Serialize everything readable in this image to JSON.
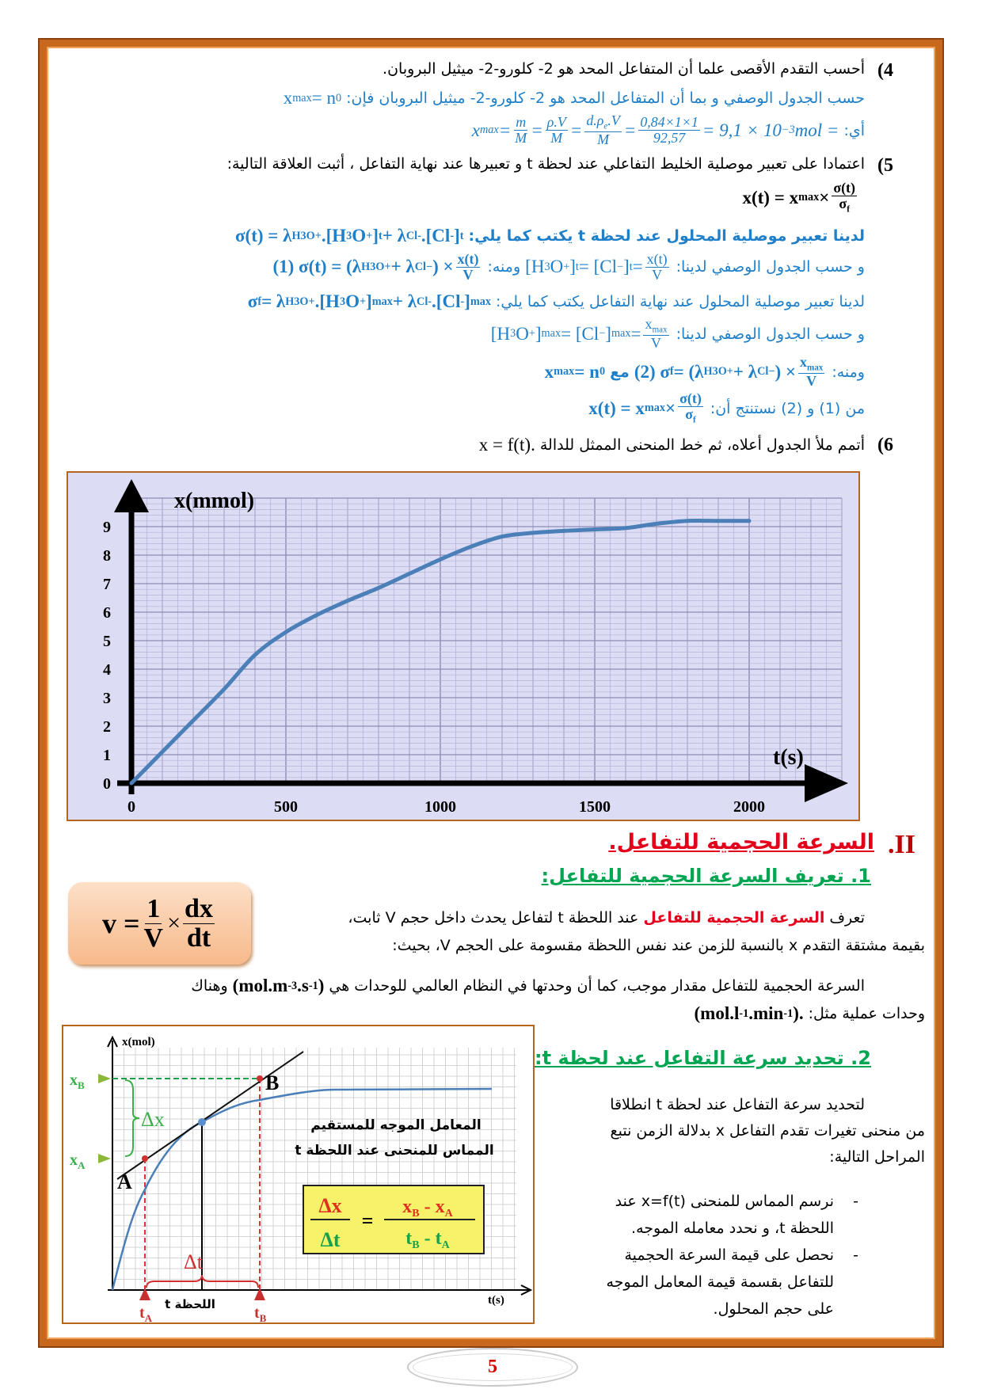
{
  "colors": {
    "answer": "#1f7fc8",
    "heading_red": "#e3001b",
    "heading_green": "#00a651",
    "frame": "#c8671e",
    "chart_bg": "#dcdcf5",
    "curve": "#4a7fb8"
  },
  "questions": {
    "q4": {
      "num": "(4",
      "segs": [
        {
          "t": "أحسب التقدم الأقصى علما أن المتفاعل المحد هو 2- كلورو-2- ميثيل البروبان."
        }
      ]
    },
    "a4_1": {
      "segs": [
        {
          "t": "حسب الجدول الوصفي و بما أن المتفاعل المحد هو 2- كلورو-2- ميثيل البروبان فإن:"
        },
        {
          "m": [
            "x",
            {
              "sub": "max"
            },
            " = n",
            {
              "sub": "0"
            }
          ]
        }
      ]
    },
    "a4_2": {
      "segs": [
        {
          "t": "أي:"
        },
        {
          "m": [
            "x",
            {
              "sub": "max"
            },
            "  = ",
            {
              "frac": [
                [
                  "m"
                ],
                [
                  "M"
                ]
              ]
            },
            " = ",
            {
              "frac": [
                [
                  "ρ.V"
                ],
                [
                  "M"
                ]
              ]
            },
            " = ",
            {
              "frac": [
                [
                  "d.ρ",
                  {
                    "sub": "e"
                  },
                  ".V"
                ],
                [
                  "M"
                ]
              ]
            },
            " = ",
            {
              "frac": [
                [
                  "0,84×1×1"
                ],
                [
                  "92,57"
                ]
              ]
            },
            " = 9,1 × 10",
            {
              "sup": "−3"
            },
            "mol ="
          ]
        }
      ]
    },
    "q5": {
      "num": "(5",
      "segs": [
        {
          "t": "اعتمادا على تعبير موصلية الخليط التفاعلي عند لحظة t و تعبيرها عند نهاية التفاعل ، أثبت العلاقة التالية:"
        }
      ]
    },
    "q5_f": {
      "segs": [
        {
          "m": [
            "x(t) = x",
            {
              "sub": "max"
            },
            " × ",
            {
              "frac": [
                [
                  "σ(t)"
                ],
                [
                  "σ",
                  {
                    "sub": "f"
                  }
                ]
              ]
            }
          ]
        }
      ]
    },
    "a5_1": {
      "segs": [
        {
          "t": "لدينا تعبير موصلية المحلول عند لحظة t يكتب كما يلي:"
        },
        {
          "m": [
            "σ(t) = λ",
            {
              "sub": "H3O+"
            },
            ".[H",
            {
              "sub": "3"
            },
            "O",
            {
              "sup": "+"
            },
            "]",
            {
              "sub": "t"
            },
            " + λ",
            {
              "sub": "Cl-"
            },
            ".[Cl",
            {
              "sup": "-"
            },
            "]",
            {
              "sub": "t"
            }
          ]
        }
      ]
    },
    "a5_2": {
      "segs": [
        {
          "t": "و حسب الجدول الوصفي لدينا:"
        },
        {
          "m": [
            "[H",
            {
              "sub": "3"
            },
            "O",
            {
              "sup": "+"
            },
            "]",
            {
              "sub": "t"
            },
            " = [Cl",
            {
              "sup": "−"
            },
            "]",
            {
              "sub": "t"
            },
            " = ",
            {
              "frac": [
                [
                  "x(t)"
                ],
                [
                  "V"
                ]
              ]
            }
          ]
        },
        {
          "t": "ومنه:"
        },
        {
          "m": [
            "(1) σ(t) = (λ",
            {
              "sub": "H3O+"
            },
            " + λ",
            {
              "sub": "Cl−"
            },
            ") × ",
            {
              "frac": [
                [
                  "x(t)"
                ],
                [
                  "V"
                ]
              ]
            }
          ],
          "b": true
        }
      ]
    },
    "a5_3": {
      "segs": [
        {
          "t": "لدينا تعبير موصلية المحلول عند نهاية التفاعل يكتب كما يلي:"
        },
        {
          "m": [
            "σ",
            {
              "sub": "f"
            },
            " = λ",
            {
              "sub": "H3O+"
            },
            ".[H",
            {
              "sub": "3"
            },
            "O",
            {
              "sup": "+"
            },
            "]",
            {
              "sub": "max"
            },
            " + λ",
            {
              "sub": "Cl-"
            },
            ".[Cl",
            {
              "sup": "-"
            },
            "]",
            {
              "sub": "max"
            }
          ],
          "b": true
        }
      ]
    },
    "a5_4": {
      "segs": [
        {
          "t": "و حسب الجدول الوصفي لدينا:"
        },
        {
          "m": [
            "[H",
            {
              "sub": "3"
            },
            "O",
            {
              "sup": "+"
            },
            "]",
            {
              "sub": "max"
            },
            " = [Cl",
            {
              "sup": "−"
            },
            "]",
            {
              "sub": "max"
            },
            " = ",
            {
              "frac": [
                [
                  "x",
                  {
                    "sub": "max"
                  }
                ],
                [
                  "V"
                ]
              ]
            }
          ]
        }
      ]
    },
    "a5_5": {
      "segs": [
        {
          "t": "ومنه:"
        },
        {
          "m": [
            "(2) σ",
            {
              "sub": "f"
            },
            " = (λ",
            {
              "sub": "H3O+"
            },
            " + λ",
            {
              "sub": "Cl−"
            },
            ") × ",
            {
              "frac": [
                [
                  "x",
                  {
                    "sub": "max"
                  }
                ],
                [
                  "V"
                ]
              ]
            }
          ],
          "b": true
        },
        {
          "t": "مع",
          "b": true
        },
        {
          "m": [
            "x",
            {
              "sub": "max"
            },
            " = n",
            {
              "sub": "0"
            }
          ],
          "b": true
        }
      ]
    },
    "a5_6": {
      "segs": [
        {
          "t": "من (1) و (2) نستنتج أن:"
        },
        {
          "m": [
            "x(t) = x",
            {
              "sub": "max"
            },
            " × ",
            {
              "frac": [
                [
                  "σ(t)"
                ],
                [
                  "σ",
                  {
                    "sub": "f"
                  }
                ]
              ]
            }
          ],
          "b": true
        }
      ]
    },
    "q6": {
      "num": "(6",
      "segs": [
        {
          "t": "أتمم ملأ الجدول أعلاه، ثم خط المنحنى الممثل للدالة"
        },
        {
          "m": [
            "x = f(t)."
          ]
        }
      ]
    }
  },
  "chart_data": {
    "type": "line",
    "xlabel": "t(s)",
    "ylabel": "x(mmol)",
    "xlim": [
      0,
      2300
    ],
    "ylim": [
      0,
      10
    ],
    "x_ticks": [
      0,
      500,
      1000,
      1500,
      2000
    ],
    "y_ticks": [
      0,
      1,
      2,
      3,
      4,
      5,
      6,
      7,
      8,
      9
    ],
    "grid": true,
    "x": [
      0,
      100,
      200,
      300,
      400,
      500,
      600,
      700,
      800,
      900,
      1000,
      1100,
      1200,
      1300,
      1400,
      1500,
      1600,
      1700,
      1800,
      1900,
      2000
    ],
    "y": [
      0,
      1.1,
      2.2,
      3.3,
      4.5,
      5.3,
      5.9,
      6.4,
      6.85,
      7.35,
      7.85,
      8.3,
      8.65,
      8.78,
      8.85,
      8.9,
      8.95,
      9.1,
      9.2,
      9.2,
      9.2
    ]
  },
  "section2": {
    "num": "II.",
    "title": "السرعة الحجمية للتفاعل.",
    "sub1": "1. تعريف السرعة الحجمية للتفاعل:",
    "formula": {
      "lhs": "v = ",
      "n1": "1",
      "d1": "V",
      "times": "×",
      "n2": "dx",
      "d2": "dt"
    },
    "p1_l1": {
      "segs": [
        {
          "t": "تعرف"
        },
        {
          "t": "السرعة الحجمية للتفاعل",
          "c": "#e3001b",
          "b": true
        },
        {
          "t": "عند اللحظة t لتفاعل يحدث داخل حجم V ثابت،"
        }
      ]
    },
    "p1_l2": {
      "segs": [
        {
          "t": "بقيمة مشتقة التقدم x بالنسبة للزمن عند نفس اللحظة مقسومة على الحجم V، بحيث:"
        }
      ]
    },
    "p2_l1": {
      "segs": [
        {
          "t": "السرعة الحجمية للتفاعل مقدار موجب، كما أن وحدتها في النظام العالمي للوحدات هي"
        },
        {
          "m": [
            "(mol.m",
            {
              "sup": "-3"
            },
            ".s",
            {
              "sup": "-1"
            },
            ")"
          ],
          "b": true
        },
        {
          "t": "وهناك"
        }
      ]
    },
    "p2_l2": {
      "segs": [
        {
          "t": "وحدات عملية مثل:"
        },
        {
          "m": [
            "(mol.l",
            {
              "sup": "-1"
            },
            ".min",
            {
              "sup": "-1"
            },
            ")."
          ],
          "b": true
        }
      ]
    },
    "sub2": "2. تحديد سرعة التفاعل عند لحظة t:",
    "intro": [
      "لتحديد سرعة التفاعل عند لحظة    t انطلاقا",
      "من منحنى تغيرات تقدم التفاعل  x بدلالة الزمن نتبع",
      "المراحل التالية:"
    ],
    "bullets": [
      {
        "dash": "-",
        "lines": [
          "نرسم المماس للمنحنى     x=f(t) عند",
          "اللحظة t، و نحدد معامله الموجه."
        ]
      },
      {
        "dash": "-",
        "lines": [
          "نحصل على قيمة السرعة الحجمية",
          "للتفاعل بقسمة قيمة المعامل الموجه",
          "على حجم المحلول."
        ]
      }
    ]
  },
  "figure": {
    "ylabel": "x(mol)",
    "xlabel": "t(s)",
    "xB": "x",
    "xB_sub": "B",
    "xA": "x",
    "xA_sub": "A",
    "pointA": "A",
    "pointB": "B",
    "dx": "Δx",
    "dt": "Δt",
    "tA": "t",
    "tA_sub": "A",
    "tB": "t",
    "tB_sub": "B",
    "t_label": "t اللحظة",
    "caption_l1": "المعامل الموجه للمستقيم",
    "caption_l2": "المماس للمنحنى عند اللحظة t",
    "eq": {
      "n_left": "Δx",
      "d_left": "Δt",
      "eq": "=",
      "n_right": "x",
      "n_right_s1": "B",
      "n_right_mid": " - x",
      "n_right_s2": "A",
      "d_right": "t",
      "d_right_s1": "B",
      "d_right_mid": " - t",
      "d_right_s2": "A"
    }
  },
  "page_number": "5"
}
